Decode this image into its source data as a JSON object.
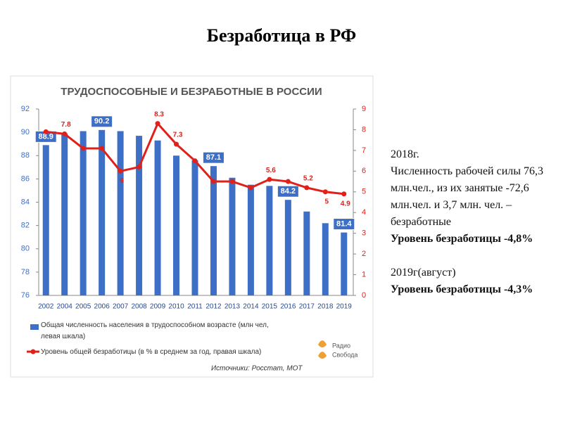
{
  "slide_title": "Безработица в РФ",
  "chart_data": {
    "type": "bar_line",
    "title": "ТРУДОСПОСОБНЫЕ И БЕЗРАБОТНЫЕ В РОССИИ",
    "categories": [
      "2002",
      "2004",
      "2005",
      "2006",
      "2007",
      "2008",
      "2009",
      "2010",
      "2011",
      "2012",
      "2013",
      "2014",
      "2015",
      "2016",
      "2017",
      "2018",
      "2019"
    ],
    "series": [
      {
        "name": "Общая численность населения в трудоспособном возрасте (млн чел, левая шкала)",
        "type": "bar",
        "color": "#3d6fc6",
        "values": [
          88.9,
          89.9,
          90.1,
          90.2,
          90.1,
          89.7,
          89.3,
          88.0,
          87.6,
          87.1,
          86.1,
          85.5,
          85.4,
          84.2,
          83.2,
          82.2,
          81.4
        ],
        "value_labels": [
          "88.9",
          null,
          null,
          "90.2",
          null,
          null,
          null,
          null,
          null,
          "87.1",
          null,
          null,
          null,
          "84.2",
          null,
          null,
          "81.4"
        ]
      },
      {
        "name": "Уровень общей безработицы (в % в среднем за год, правая шкала)",
        "type": "line",
        "axis": "y2",
        "color": "#e0201a",
        "values": [
          7.9,
          7.8,
          7.1,
          7.1,
          6.0,
          6.2,
          8.3,
          7.3,
          6.5,
          5.5,
          5.5,
          5.2,
          5.6,
          5.5,
          5.2,
          5.0,
          4.9
        ],
        "value_labels": [
          null,
          "7.8",
          null,
          null,
          "6",
          null,
          "8.3",
          "7.3",
          null,
          null,
          null,
          null,
          "5.6",
          null,
          "5.2",
          "5",
          "4.9"
        ]
      }
    ],
    "ylim": [
      76,
      92
    ],
    "yticks": [
      76,
      78,
      80,
      82,
      84,
      86,
      88,
      90,
      92
    ],
    "y2lim": [
      0,
      9
    ],
    "y2ticks": [
      0,
      1,
      2,
      3,
      4,
      5,
      6,
      7,
      8,
      9
    ],
    "grid": false,
    "source": "Источники: Росстат, МОТ",
    "logo_lines": [
      "Радио",
      "Свобода"
    ]
  },
  "side_text": {
    "lines": [
      "2018г.",
      "Численность рабочей силы  76,3 млн.чел., из их  занятые -72,6 млн.чел.  и 3,7 млн. чел. – безработные",
      "Уровень безработицы -4,8%",
      "2019г(август)",
      "Уровень безработицы -4,3%"
    ]
  }
}
